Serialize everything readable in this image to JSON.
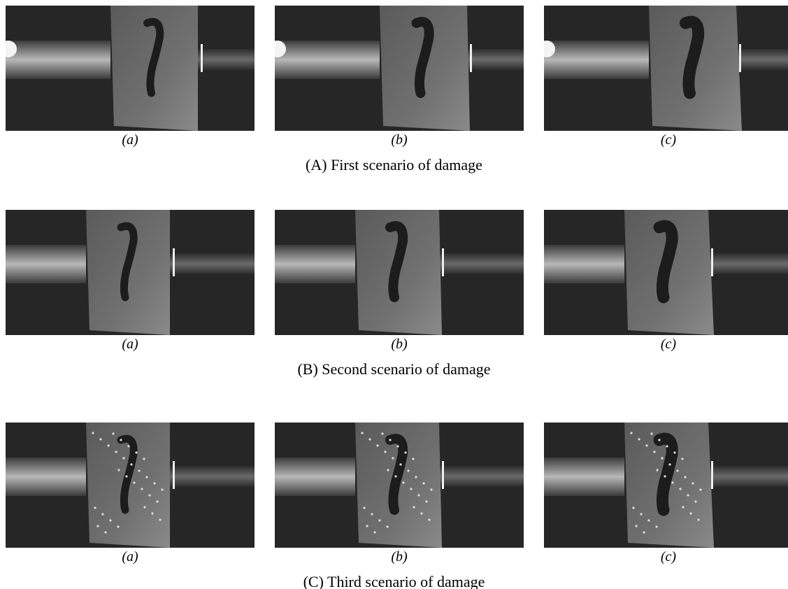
{
  "figure": {
    "rows": [
      {
        "caption": "(A) First scenario of damage",
        "panels": [
          "(a)",
          "(b)",
          "(c)"
        ]
      },
      {
        "caption": "(B) Second scenario of damage",
        "panels": [
          "(a)",
          "(b)",
          "(c)"
        ]
      },
      {
        "caption": "(C) Third scenario of damage",
        "panels": [
          "(a)",
          "(b)",
          "(c)"
        ]
      }
    ]
  }
}
